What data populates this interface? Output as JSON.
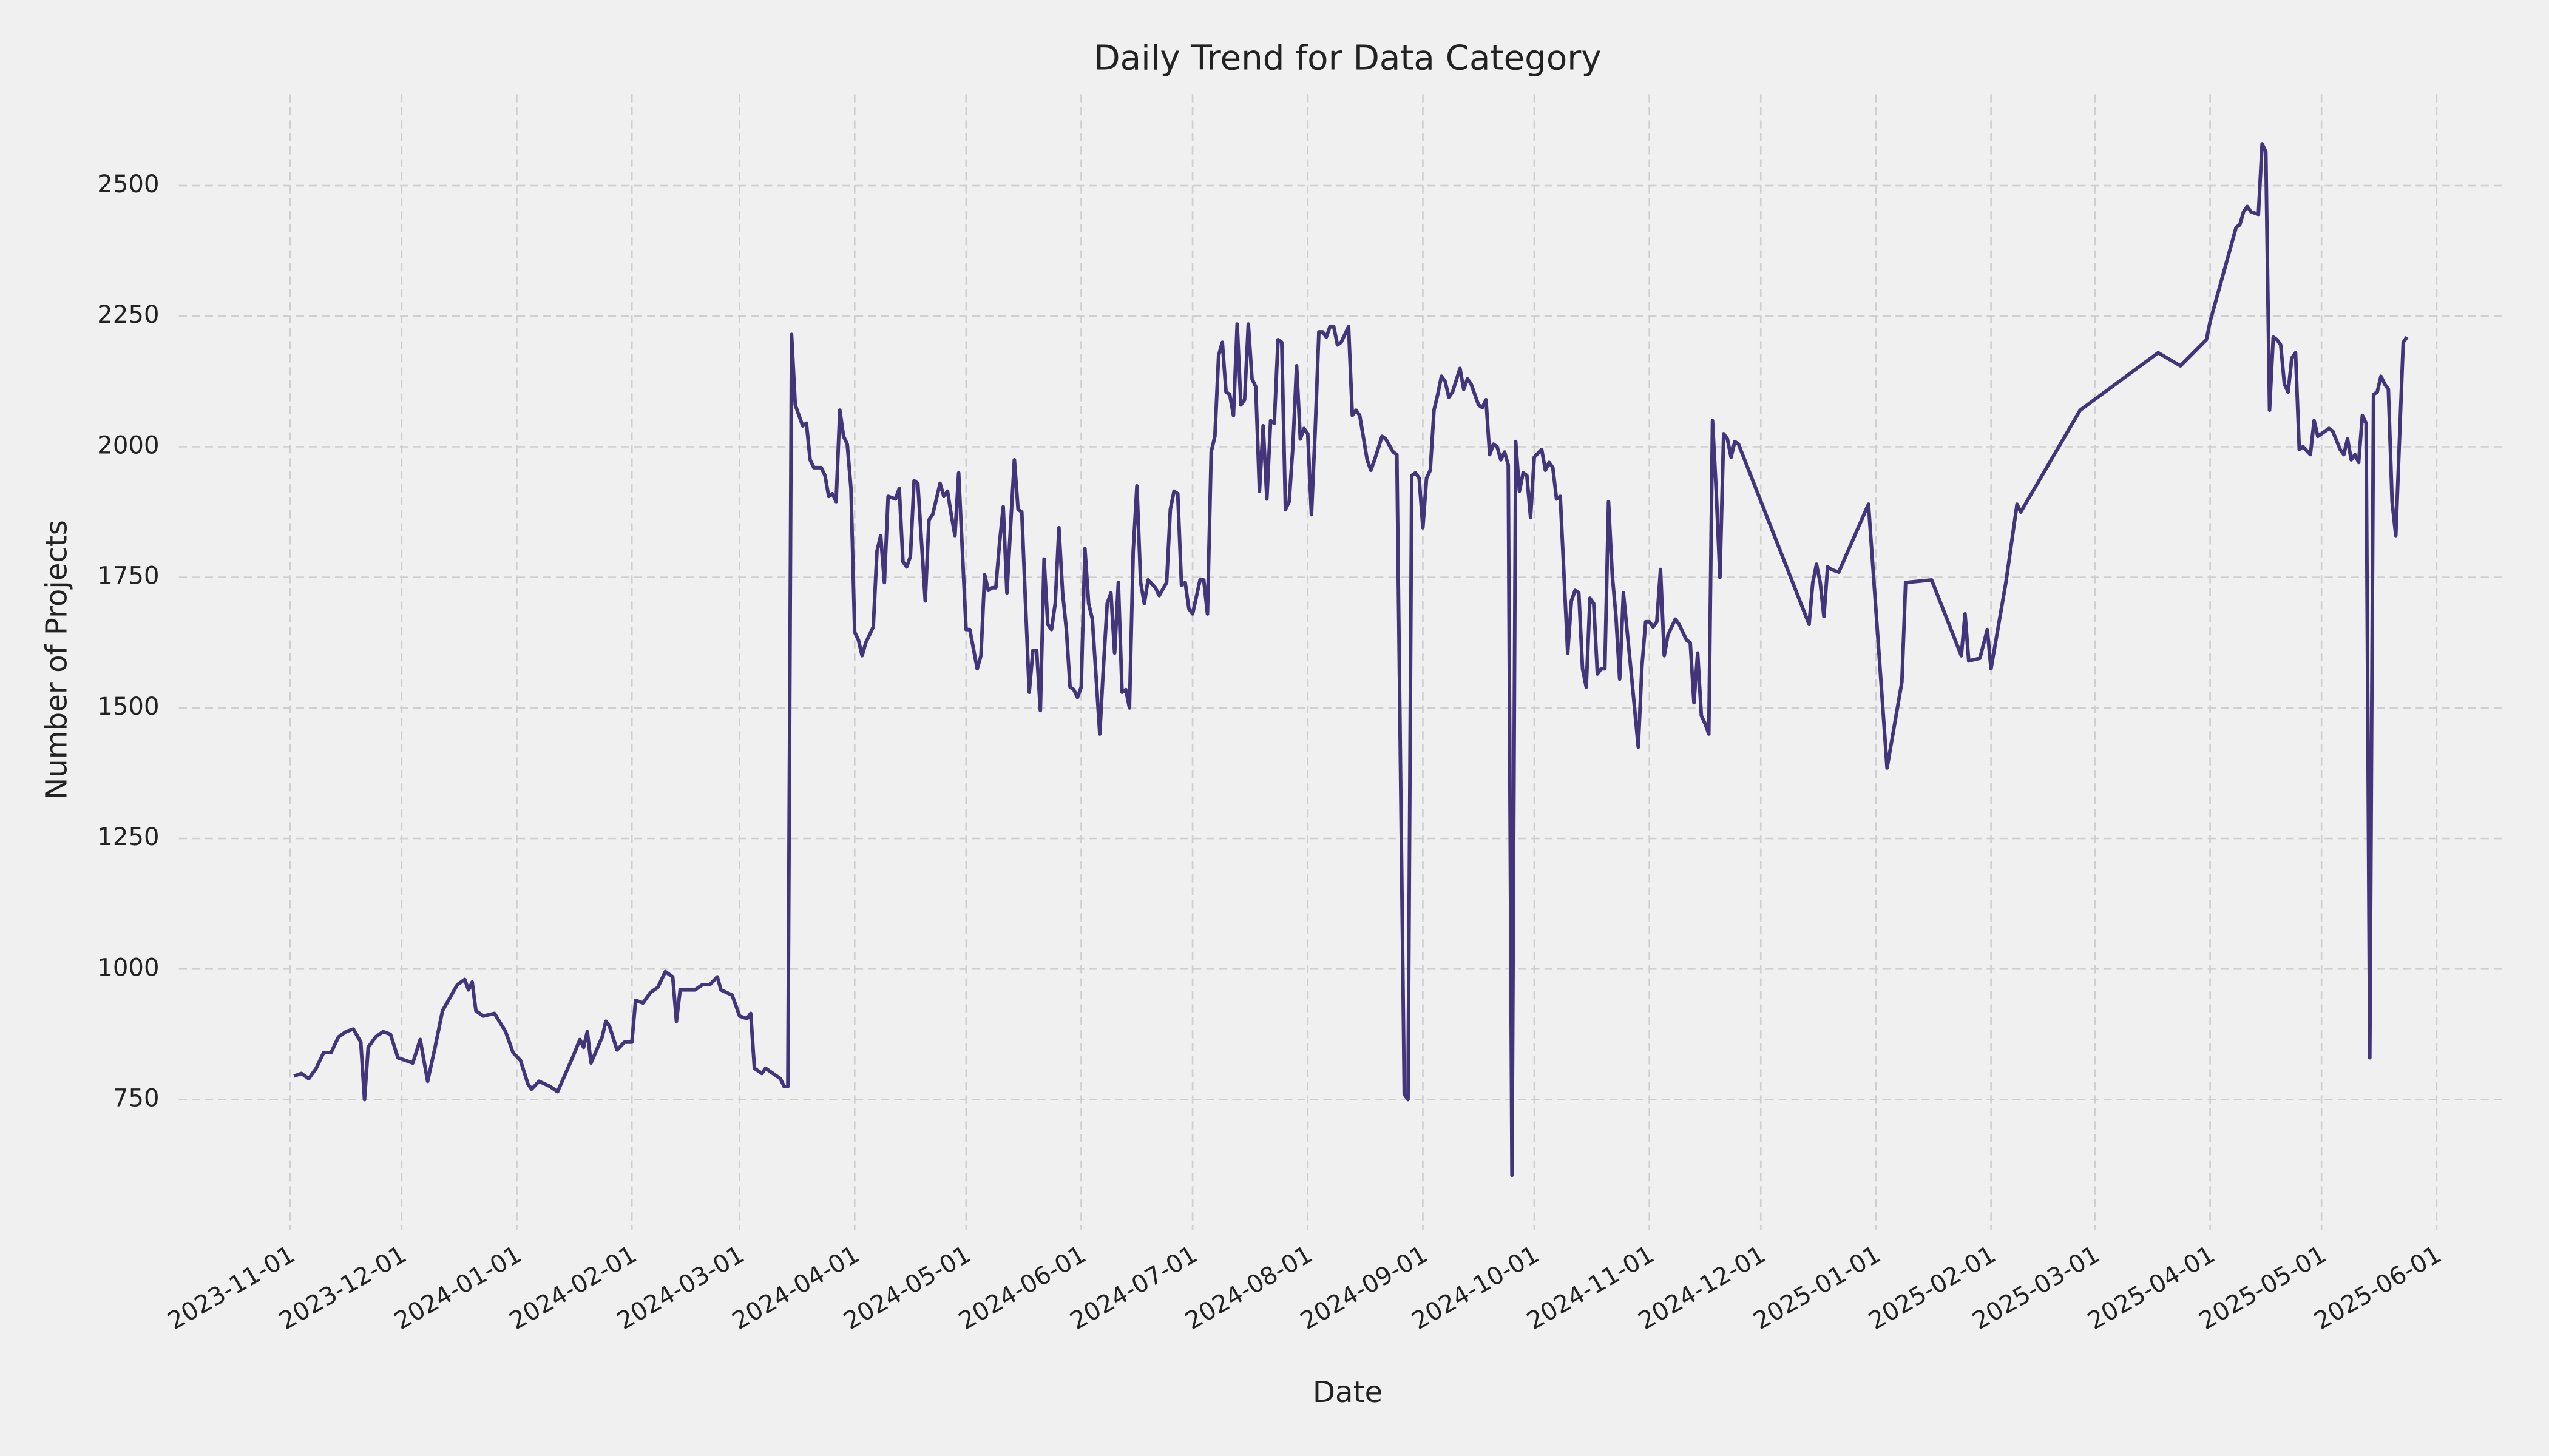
{
  "chart_data": {
    "type": "line",
    "title": "Daily Trend for Data Category",
    "x_label": "Date",
    "y_label": "Number of Projects",
    "color": "#433579",
    "grid": true,
    "xlim": [
      "2023-10-02",
      "2025-06-19"
    ],
    "xticks": [
      "2023-11-01",
      "2023-12-01",
      "2024-01-01",
      "2024-02-01",
      "2024-03-01",
      "2024-04-01",
      "2024-05-01",
      "2024-06-01",
      "2024-07-01",
      "2024-08-01",
      "2024-09-01",
      "2024-10-01",
      "2024-11-01",
      "2024-12-01",
      "2025-01-01",
      "2025-02-01",
      "2025-03-01",
      "2025-04-01",
      "2025-05-01",
      "2025-06-01"
    ],
    "ylim": [
      500,
      2675
    ],
    "yticks": [
      750,
      1000,
      1250,
      1500,
      1750,
      2000,
      2250,
      2500
    ],
    "x": [
      "2023-11-02",
      "2023-11-04",
      "2023-11-06",
      "2023-11-08",
      "2023-11-10",
      "2023-11-12",
      "2023-11-14",
      "2023-11-16",
      "2023-11-18",
      "2023-11-20",
      "2023-11-21",
      "2023-11-22",
      "2023-11-24",
      "2023-11-26",
      "2023-11-28",
      "2023-11-30",
      "2023-12-02",
      "2023-12-04",
      "2023-12-06",
      "2023-12-08",
      "2023-12-10",
      "2023-12-12",
      "2023-12-14",
      "2023-12-16",
      "2023-12-18",
      "2023-12-19",
      "2023-12-20",
      "2023-12-21",
      "2023-12-23",
      "2023-12-26",
      "2023-12-29",
      "2023-12-31",
      "2024-01-02",
      "2024-01-04",
      "2024-01-05",
      "2024-01-07",
      "2024-01-10",
      "2024-01-12",
      "2024-01-16",
      "2024-01-18",
      "2024-01-19",
      "2024-01-20",
      "2024-01-21",
      "2024-01-24",
      "2024-01-25",
      "2024-01-26",
      "2024-01-28",
      "2024-01-30",
      "2024-02-01",
      "2024-02-02",
      "2024-02-04",
      "2024-02-06",
      "2024-02-08",
      "2024-02-10",
      "2024-02-12",
      "2024-02-13",
      "2024-02-14",
      "2024-02-18",
      "2024-02-20",
      "2024-02-22",
      "2024-02-24",
      "2024-02-25",
      "2024-02-28",
      "2024-03-01",
      "2024-03-03",
      "2024-03-04",
      "2024-03-05",
      "2024-03-07",
      "2024-03-08",
      "2024-03-10",
      "2024-03-12",
      "2024-03-13",
      "2024-03-14",
      "2024-03-15",
      "2024-03-16",
      "2024-03-18",
      "2024-03-19",
      "2024-03-20",
      "2024-03-21",
      "2024-03-23",
      "2024-03-24",
      "2024-03-25",
      "2024-03-26",
      "2024-03-27",
      "2024-03-28",
      "2024-03-29",
      "2024-03-30",
      "2024-03-31",
      "2024-04-01",
      "2024-04-02",
      "2024-04-03",
      "2024-04-04",
      "2024-04-06",
      "2024-04-07",
      "2024-04-08",
      "2024-04-09",
      "2024-04-10",
      "2024-04-12",
      "2024-04-13",
      "2024-04-14",
      "2024-04-15",
      "2024-04-16",
      "2024-04-17",
      "2024-04-18",
      "2024-04-20",
      "2024-04-21",
      "2024-04-22",
      "2024-04-24",
      "2024-04-25",
      "2024-04-26",
      "2024-04-27",
      "2024-04-28",
      "2024-04-29",
      "2024-05-01",
      "2024-05-02",
      "2024-05-04",
      "2024-05-05",
      "2024-05-06",
      "2024-05-07",
      "2024-05-08",
      "2024-05-09",
      "2024-05-10",
      "2024-05-11",
      "2024-05-12",
      "2024-05-13",
      "2024-05-14",
      "2024-05-15",
      "2024-05-16",
      "2024-05-17",
      "2024-05-18",
      "2024-05-19",
      "2024-05-20",
      "2024-05-21",
      "2024-05-22",
      "2024-05-23",
      "2024-05-24",
      "2024-05-25",
      "2024-05-26",
      "2024-05-27",
      "2024-05-28",
      "2024-05-29",
      "2024-05-30",
      "2024-05-31",
      "2024-06-01",
      "2024-06-02",
      "2024-06-03",
      "2024-06-04",
      "2024-06-06",
      "2024-06-07",
      "2024-06-08",
      "2024-06-09",
      "2024-06-10",
      "2024-06-11",
      "2024-06-12",
      "2024-06-13",
      "2024-06-14",
      "2024-06-15",
      "2024-06-16",
      "2024-06-17",
      "2024-06-18",
      "2024-06-19",
      "2024-06-21",
      "2024-06-22",
      "2024-06-24",
      "2024-06-25",
      "2024-06-26",
      "2024-06-27",
      "2024-06-28",
      "2024-06-29",
      "2024-06-30",
      "2024-07-01",
      "2024-07-03",
      "2024-07-04",
      "2024-07-05",
      "2024-07-06",
      "2024-07-07",
      "2024-07-08",
      "2024-07-09",
      "2024-07-10",
      "2024-07-11",
      "2024-07-12",
      "2024-07-13",
      "2024-07-14",
      "2024-07-15",
      "2024-07-16",
      "2024-07-17",
      "2024-07-18",
      "2024-07-19",
      "2024-07-20",
      "2024-07-21",
      "2024-07-22",
      "2024-07-23",
      "2024-07-24",
      "2024-07-25",
      "2024-07-26",
      "2024-07-27",
      "2024-07-28",
      "2024-07-29",
      "2024-07-30",
      "2024-07-31",
      "2024-08-01",
      "2024-08-02",
      "2024-08-03",
      "2024-08-04",
      "2024-08-05",
      "2024-08-06",
      "2024-08-07",
      "2024-08-08",
      "2024-08-09",
      "2024-08-10",
      "2024-08-12",
      "2024-08-13",
      "2024-08-14",
      "2024-08-15",
      "2024-08-17",
      "2024-08-18",
      "2024-08-19",
      "2024-08-21",
      "2024-08-22",
      "2024-08-24",
      "2024-08-25",
      "2024-08-27",
      "2024-08-28",
      "2024-08-29",
      "2024-08-30",
      "2024-08-31",
      "2024-09-01",
      "2024-09-02",
      "2024-09-03",
      "2024-09-04",
      "2024-09-05",
      "2024-09-06",
      "2024-09-07",
      "2024-09-08",
      "2024-09-09",
      "2024-09-11",
      "2024-09-12",
      "2024-09-13",
      "2024-09-14",
      "2024-09-16",
      "2024-09-17",
      "2024-09-18",
      "2024-09-19",
      "2024-09-20",
      "2024-09-21",
      "2024-09-22",
      "2024-09-23",
      "2024-09-24",
      "2024-09-25",
      "2024-09-26",
      "2024-09-27",
      "2024-09-28",
      "2024-09-29",
      "2024-09-30",
      "2024-10-01",
      "2024-10-03",
      "2024-10-04",
      "2024-10-05",
      "2024-10-06",
      "2024-10-07",
      "2024-10-08",
      "2024-10-10",
      "2024-10-11",
      "2024-10-12",
      "2024-10-13",
      "2024-10-14",
      "2024-10-15",
      "2024-10-16",
      "2024-10-17",
      "2024-10-18",
      "2024-10-19",
      "2024-10-20",
      "2024-10-21",
      "2024-10-22",
      "2024-10-23",
      "2024-10-24",
      "2024-10-25",
      "2024-10-27",
      "2024-10-29",
      "2024-10-30",
      "2024-10-31",
      "2024-11-01",
      "2024-11-02",
      "2024-11-03",
      "2024-11-04",
      "2024-11-05",
      "2024-11-06",
      "2024-11-08",
      "2024-11-09",
      "2024-11-11",
      "2024-11-12",
      "2024-11-13",
      "2024-11-14",
      "2024-11-15",
      "2024-11-16",
      "2024-11-17",
      "2024-11-18",
      "2024-11-19",
      "2024-11-20",
      "2024-11-21",
      "2024-11-22",
      "2024-11-23",
      "2024-11-24",
      "2024-11-25",
      "2024-12-14",
      "2024-12-15",
      "2024-12-16",
      "2024-12-17",
      "2024-12-18",
      "2024-12-19",
      "2024-12-20",
      "2024-12-22",
      "2024-12-30",
      "2025-01-04",
      "2025-01-08",
      "2025-01-09",
      "2025-01-16",
      "2025-01-24",
      "2025-01-25",
      "2025-01-26",
      "2025-01-29",
      "2025-01-31",
      "2025-02-01",
      "2025-02-05",
      "2025-02-08",
      "2025-02-09",
      "2025-02-25",
      "2025-03-18",
      "2025-03-24",
      "2025-03-31",
      "2025-04-01",
      "2025-04-08",
      "2025-04-09",
      "2025-04-10",
      "2025-04-11",
      "2025-04-12",
      "2025-04-14",
      "2025-04-15",
      "2025-04-16",
      "2025-04-17",
      "2025-04-18",
      "2025-04-19",
      "2025-04-20",
      "2025-04-21",
      "2025-04-22",
      "2025-04-23",
      "2025-04-24",
      "2025-04-25",
      "2025-04-26",
      "2025-04-28",
      "2025-04-29",
      "2025-04-30",
      "2025-05-01",
      "2025-05-03",
      "2025-05-04",
      "2025-05-06",
      "2025-05-07",
      "2025-05-08",
      "2025-05-09",
      "2025-05-10",
      "2025-05-11",
      "2025-05-12",
      "2025-05-13",
      "2025-05-14",
      "2025-05-15",
      "2025-05-16",
      "2025-05-17",
      "2025-05-18",
      "2025-05-19",
      "2025-05-20",
      "2025-05-21",
      "2025-05-23",
      "2025-05-24"
    ],
    "values": [
      795,
      800,
      790,
      810,
      840,
      840,
      870,
      880,
      885,
      860,
      750,
      850,
      870,
      880,
      875,
      830,
      825,
      820,
      865,
      785,
      850,
      920,
      945,
      970,
      980,
      960,
      975,
      920,
      910,
      915,
      880,
      840,
      825,
      780,
      770,
      785,
      775,
      765,
      830,
      865,
      850,
      880,
      820,
      870,
      900,
      890,
      845,
      860,
      860,
      940,
      935,
      955,
      965,
      995,
      985,
      900,
      960,
      960,
      970,
      970,
      985,
      960,
      950,
      910,
      905,
      915,
      810,
      800,
      810,
      800,
      790,
      775,
      775,
      2215,
      2080,
      2040,
      2045,
      1975,
      1960,
      1960,
      1945,
      1905,
      1910,
      1895,
      2070,
      2020,
      2005,
      1920,
      1645,
      1630,
      1600,
      1625,
      1655,
      1800,
      1830,
      1740,
      1905,
      1900,
      1920,
      1780,
      1770,
      1790,
      1935,
      1930,
      1705,
      1860,
      1870,
      1930,
      1905,
      1915,
      1870,
      1830,
      1950,
      1650,
      1650,
      1575,
      1600,
      1755,
      1725,
      1730,
      1730,
      1815,
      1885,
      1720,
      1850,
      1975,
      1880,
      1875,
      1700,
      1530,
      1610,
      1610,
      1495,
      1785,
      1660,
      1650,
      1700,
      1845,
      1720,
      1650,
      1540,
      1535,
      1520,
      1540,
      1805,
      1700,
      1670,
      1450,
      1580,
      1700,
      1720,
      1605,
      1740,
      1530,
      1535,
      1500,
      1800,
      1925,
      1740,
      1700,
      1745,
      1730,
      1715,
      1740,
      1880,
      1915,
      1910,
      1735,
      1740,
      1690,
      1680,
      1745,
      1745,
      1680,
      1990,
      2020,
      2175,
      2200,
      2105,
      2100,
      2060,
      2235,
      2080,
      2090,
      2235,
      2130,
      2115,
      1915,
      2040,
      1900,
      2050,
      2045,
      2205,
      2200,
      1880,
      1895,
      2000,
      2155,
      2015,
      2035,
      2025,
      1870,
      2030,
      2220,
      2220,
      2210,
      2230,
      2230,
      2195,
      2200,
      2230,
      2060,
      2070,
      2060,
      1975,
      1955,
      1975,
      2020,
      2015,
      1990,
      1985,
      760,
      750,
      1945,
      1950,
      1940,
      1845,
      1940,
      1955,
      2070,
      2100,
      2135,
      2125,
      2095,
      2105,
      2150,
      2110,
      2130,
      2120,
      2080,
      2075,
      2090,
      1985,
      2005,
      2000,
      1975,
      1990,
      1965,
      605,
      2010,
      1915,
      1950,
      1945,
      1865,
      1980,
      1995,
      1955,
      1970,
      1960,
      1900,
      1905,
      1605,
      1705,
      1725,
      1720,
      1575,
      1540,
      1710,
      1700,
      1565,
      1575,
      1575,
      1895,
      1755,
      1675,
      1555,
      1720,
      1575,
      1425,
      1580,
      1665,
      1665,
      1655,
      1665,
      1765,
      1600,
      1640,
      1670,
      1660,
      1630,
      1625,
      1510,
      1605,
      1485,
      1470,
      1450,
      2050,
      1915,
      1750,
      2025,
      2015,
      1980,
      2010,
      2005,
      1660,
      1740,
      1775,
      1740,
      1675,
      1770,
      1765,
      1760,
      1890,
      1385,
      1550,
      1740,
      1745,
      1600,
      1680,
      1590,
      1595,
      1650,
      1575,
      1740,
      1890,
      1875,
      2070,
      2180,
      2155,
      2205,
      2240,
      2420,
      2425,
      2450,
      2460,
      2450,
      2445,
      2580,
      2565,
      2070,
      2210,
      2205,
      2195,
      2120,
      2105,
      2170,
      2180,
      1995,
      2000,
      1985,
      2050,
      2020,
      2025,
      2035,
      2030,
      1995,
      1985,
      2015,
      1975,
      1985,
      1970,
      2060,
      2045,
      830,
      2100,
      2105,
      2135,
      2120,
      2110,
      1895,
      1830,
      2200,
      2210
    ]
  }
}
